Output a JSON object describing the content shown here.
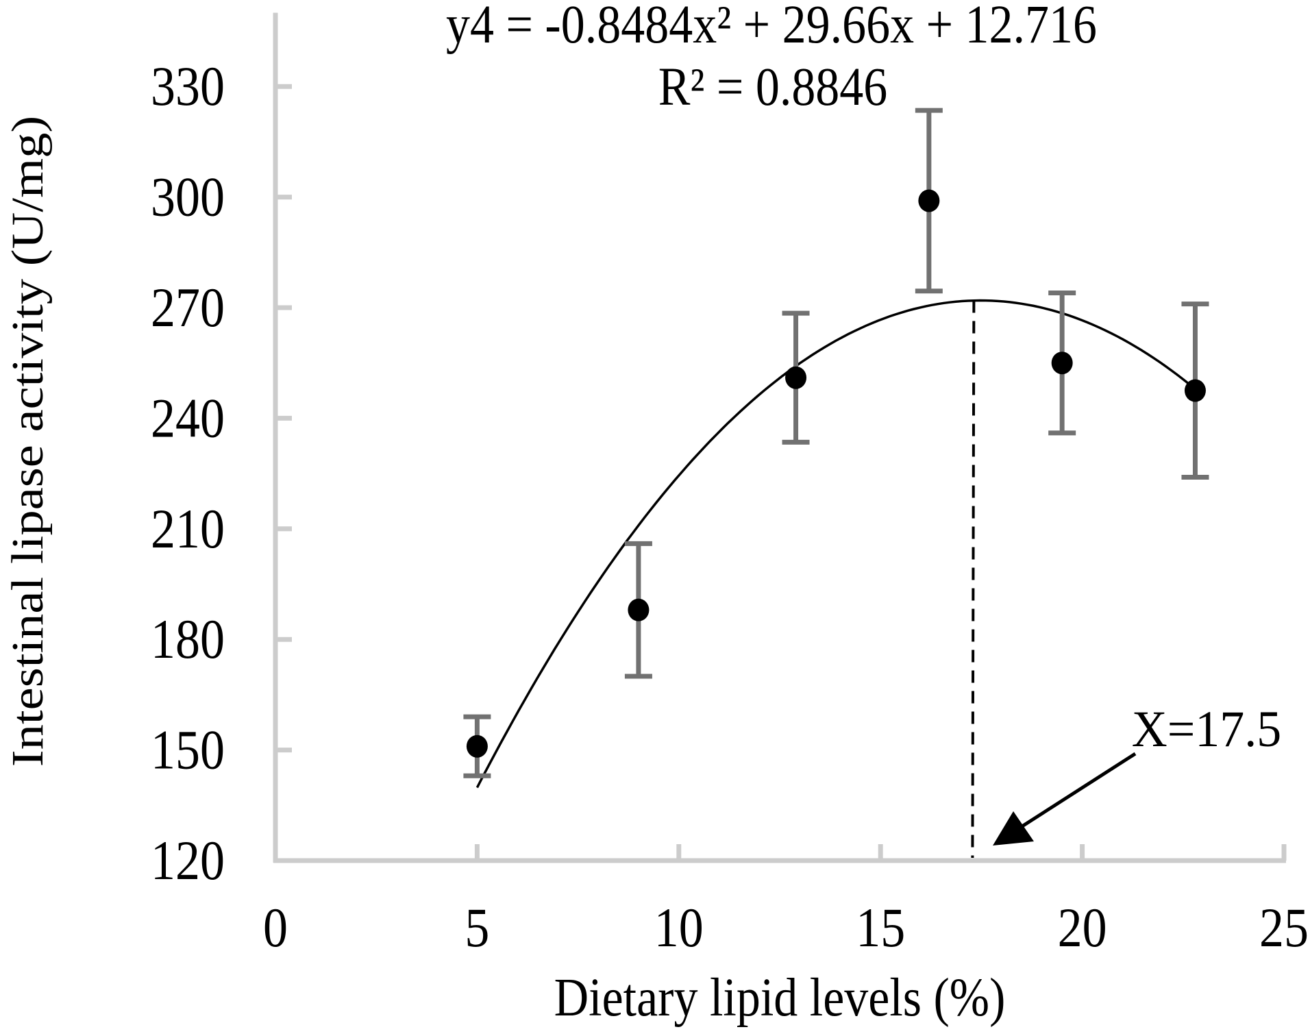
{
  "chart": {
    "equation": "y4 = -0.8484x² + 29.66x + 12.716",
    "r_squared": "R² = 0.8846",
    "annotation": "X=17.5",
    "xlabel": "Dietary lipid levels (%)",
    "ylabel": "Intestinal lipase activity (U/mg)",
    "colors": {
      "axis": "#cccccc",
      "error_bar": "#717171",
      "marker": "#000000",
      "trend": "#000000",
      "background": "#ffffff"
    }
  },
  "chart_data": {
    "type": "scatter",
    "title": "",
    "xlabel": "Dietary lipid levels (%)",
    "ylabel": "Intestinal lipase activity (U/mg)",
    "xlim": [
      0,
      25
    ],
    "ylim": [
      120,
      350
    ],
    "x_ticks": [
      0,
      5,
      10,
      15,
      20,
      25
    ],
    "y_ticks": [
      120,
      150,
      180,
      210,
      240,
      270,
      300,
      330
    ],
    "grid": false,
    "legend": null,
    "series": [
      {
        "name": "Intestinal lipase activity",
        "x": [
          5.0,
          9.0,
          12.9,
          16.2,
          19.5,
          22.8
        ],
        "values": [
          151,
          188,
          251,
          299,
          255,
          247.5
        ],
        "error": [
          8,
          18,
          17.5,
          24.5,
          19,
          23.5
        ]
      }
    ],
    "trendline": {
      "type": "polynomial",
      "order": 2,
      "coefficients": {
        "a": -0.8484,
        "b": 29.66,
        "c": 12.716
      },
      "x_range": [
        5.0,
        22.8
      ],
      "equation_label": "y4 = -0.8484x² + 29.66x + 12.716",
      "r_squared": 0.8846
    },
    "annotations": [
      {
        "type": "vline",
        "x": 17.5,
        "style": "dashed",
        "label": "X=17.5"
      },
      {
        "type": "arrow",
        "label": "X=17.5",
        "points_to_x": 17.5
      }
    ]
  }
}
